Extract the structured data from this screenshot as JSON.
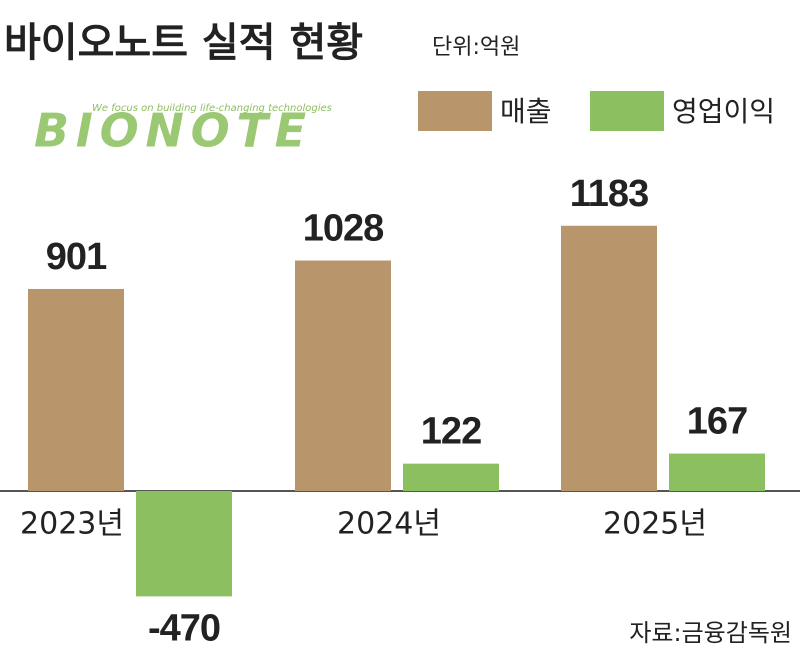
{
  "chart_data": {
    "type": "bar",
    "title": "바이오노트 실적 현황",
    "subtitle": "단위:억원",
    "source": "자료:금융감독원",
    "logo": "BIONOTE",
    "logo_tagline": "We focus on building life-changing technologies",
    "categories": [
      "2023년",
      "2024년",
      "2025년"
    ],
    "series": [
      {
        "name": "매출",
        "color": "#b8956a",
        "values": [
          901,
          1028,
          1183
        ]
      },
      {
        "name": "영업이익",
        "color": "#8cbf5f",
        "values": [
          -470,
          122,
          167
        ]
      }
    ]
  }
}
